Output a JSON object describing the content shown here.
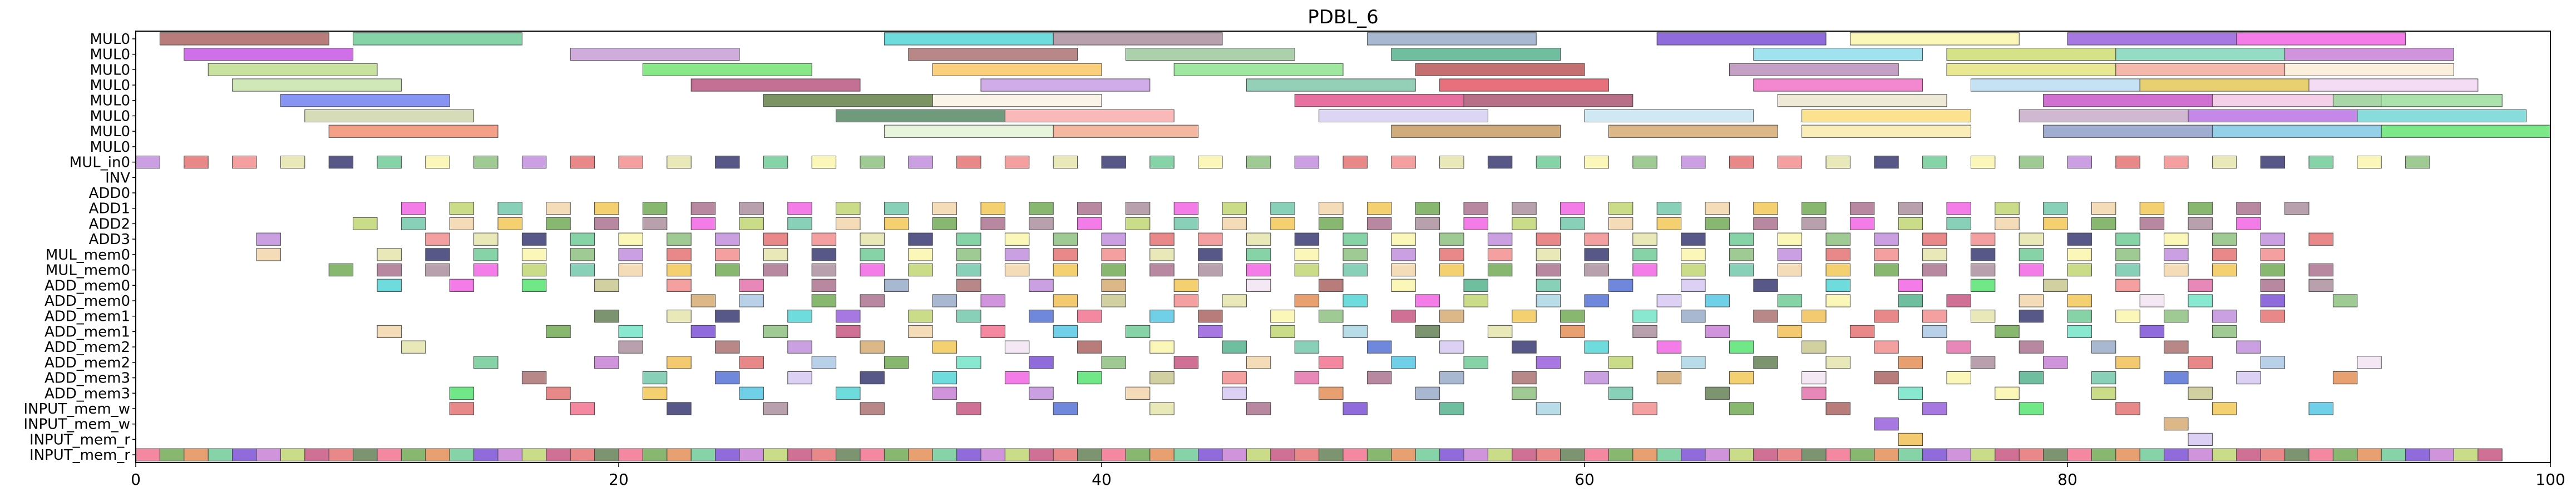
{
  "chart_data": {
    "type": "gantt",
    "title": "PDBL_6",
    "xlabel": "",
    "ylabel": "",
    "xlim": [
      0,
      100
    ],
    "x_ticks": [
      0,
      20,
      40,
      60,
      80,
      100
    ],
    "grid": false,
    "rows": [
      "MUL0",
      "MUL0",
      "MUL0",
      "MUL0",
      "MUL0",
      "MUL0",
      "MUL0",
      "MUL0",
      "MUL_in0",
      "INV",
      "ADD0",
      "ADD1",
      "ADD2",
      "ADD3",
      "MUL_mem0",
      "MUL_mem0",
      "ADD_mem0",
      "ADD_mem0",
      "ADD_mem1",
      "ADD_mem1",
      "ADD_mem2",
      "ADD_mem2",
      "ADD_mem3",
      "ADD_mem3",
      "INPUT_mem_w",
      "INPUT_mem_w",
      "INPUT_mem_r",
      "INPUT_mem_r"
    ],
    "palette": [
      "#a0524e",
      "#5ec48a",
      "#3ed0d0",
      "#a08090",
      "#8aa0c0",
      "#6a3ad0",
      "#f8f4a0",
      "#8a4ad8",
      "#f050e0",
      "#c070d0",
      "#a06060",
      "#80b870",
      "#40a880",
      "#b8d060",
      "#40e060",
      "#f0b840",
      "#b880d8",
      "#c04070",
      "#60c0a0",
      "#a0d0e0",
      "#c0c080",
      "#e06060",
      "#d0a060",
      "#f0d0a0",
      "#4060d0",
      "#507040",
      "#f08080",
      "#a0c0e0",
      "#f0c040",
      "#f06080",
      "#d0c0f0",
      "#e0e0a0",
      "#e060a0",
      "#60a040",
      "#f0e0f0",
      "#40c0e0",
      "#202060",
      "#e08040",
      "#a06080",
      "#60e0c0"
    ],
    "tasks": [
      {
        "row": 0,
        "start": 1.0,
        "end": 8.0,
        "color": "#a0524e"
      },
      {
        "row": 0,
        "start": 9.0,
        "end": 16.0,
        "color": "#5ec48a"
      },
      {
        "row": 0,
        "start": 31.0,
        "end": 38.0,
        "color": "#3ed0d0"
      },
      {
        "row": 0,
        "start": 38.0,
        "end": 45.0,
        "color": "#a08090"
      },
      {
        "row": 0,
        "start": 51.0,
        "end": 58.0,
        "color": "#8aa0c0"
      },
      {
        "row": 0,
        "start": 63.0,
        "end": 70.0,
        "color": "#6a3ad0"
      },
      {
        "row": 0,
        "start": 71.0,
        "end": 78.0,
        "color": "#f8f4a0"
      },
      {
        "row": 0,
        "start": 80.0,
        "end": 87.0,
        "color": "#8a4ad8"
      },
      {
        "row": 0,
        "start": 87.0,
        "end": 94.0,
        "color": "#f050e0"
      },
      {
        "row": 1,
        "start": 2.0,
        "end": 9.0,
        "color": "#c040e0"
      },
      {
        "row": 1,
        "start": 18.0,
        "end": 25.0,
        "color": "#c090d0"
      },
      {
        "row": 1,
        "start": 32.0,
        "end": 39.0,
        "color": "#a06060"
      },
      {
        "row": 1,
        "start": 41.0,
        "end": 48.0,
        "color": "#90c090"
      },
      {
        "row": 1,
        "start": 52.0,
        "end": 59.0,
        "color": "#40a880"
      },
      {
        "row": 1,
        "start": 67.0,
        "end": 74.0,
        "color": "#80d8e8"
      },
      {
        "row": 1,
        "start": 75.0,
        "end": 82.0,
        "color": "#c8d860"
      },
      {
        "row": 1,
        "start": 82.0,
        "end": 89.0,
        "color": "#70d0b0"
      },
      {
        "row": 1,
        "start": 89.0,
        "end": 96.0,
        "color": "#c070d0"
      },
      {
        "row": 2,
        "start": 3.0,
        "end": 10.0,
        "color": "#b8d880"
      },
      {
        "row": 2,
        "start": 21.0,
        "end": 28.0,
        "color": "#60e060"
      },
      {
        "row": 2,
        "start": 33.0,
        "end": 40.0,
        "color": "#f8c050"
      },
      {
        "row": 2,
        "start": 43.0,
        "end": 50.0,
        "color": "#80e080"
      },
      {
        "row": 2,
        "start": 53.0,
        "end": 60.0,
        "color": "#b04040"
      },
      {
        "row": 2,
        "start": 66.0,
        "end": 73.0,
        "color": "#b080b0"
      },
      {
        "row": 2,
        "start": 75.0,
        "end": 82.0,
        "color": "#e0e070"
      },
      {
        "row": 2,
        "start": 82.0,
        "end": 89.0,
        "color": "#f0a090"
      },
      {
        "row": 2,
        "start": 89.0,
        "end": 96.0,
        "color": "#f8e8d0"
      },
      {
        "row": 3,
        "start": 4.0,
        "end": 11.0,
        "color": "#c0e0a0"
      },
      {
        "row": 3,
        "start": 23.0,
        "end": 30.0,
        "color": "#b04070"
      },
      {
        "row": 3,
        "start": 35.0,
        "end": 42.0,
        "color": "#c090e0"
      },
      {
        "row": 3,
        "start": 46.0,
        "end": 53.0,
        "color": "#70c0a0"
      },
      {
        "row": 3,
        "start": 54.0,
        "end": 61.0,
        "color": "#e04050"
      },
      {
        "row": 3,
        "start": 67.0,
        "end": 74.0,
        "color": "#f060c0"
      },
      {
        "row": 3,
        "start": 76.0,
        "end": 83.0,
        "color": "#b0d8f0"
      },
      {
        "row": 3,
        "start": 83.0,
        "end": 90.0,
        "color": "#e0c040"
      },
      {
        "row": 3,
        "start": 90.0,
        "end": 97.0,
        "color": "#f0d0f0"
      },
      {
        "row": 4,
        "start": 6.0,
        "end": 13.0,
        "color": "#6070f0"
      },
      {
        "row": 4,
        "start": 26.0,
        "end": 33.0,
        "color": "#507030"
      },
      {
        "row": 4,
        "start": 33.0,
        "end": 40.0,
        "color": "#f8f0e0"
      },
      {
        "row": 4,
        "start": 48.0,
        "end": 55.0,
        "color": "#e04080"
      },
      {
        "row": 4,
        "start": 55.0,
        "end": 62.0,
        "color": "#a04060"
      },
      {
        "row": 4,
        "start": 68.0,
        "end": 75.0,
        "color": "#e8e0c8"
      },
      {
        "row": 4,
        "start": 79.0,
        "end": 86.0,
        "color": "#c040c0"
      },
      {
        "row": 4,
        "start": 86.0,
        "end": 93.0,
        "color": "#f0c0e0"
      },
      {
        "row": 4,
        "start": 91.0,
        "end": 98.0,
        "color": "#90d890"
      },
      {
        "row": 5,
        "start": 7.0,
        "end": 14.0,
        "color": "#c8d0a0"
      },
      {
        "row": 5,
        "start": 29.0,
        "end": 36.0,
        "color": "#407850"
      },
      {
        "row": 5,
        "start": 36.0,
        "end": 43.0,
        "color": "#f8a0a0"
      },
      {
        "row": 5,
        "start": 49.0,
        "end": 56.0,
        "color": "#d0c8f0"
      },
      {
        "row": 5,
        "start": 60.0,
        "end": 67.0,
        "color": "#c0e0f0"
      },
      {
        "row": 5,
        "start": 69.0,
        "end": 76.0,
        "color": "#f8d868"
      },
      {
        "row": 5,
        "start": 78.0,
        "end": 85.0,
        "color": "#c0a0c0"
      },
      {
        "row": 5,
        "start": 85.0,
        "end": 92.0,
        "color": "#b060e0"
      },
      {
        "row": 5,
        "start": 92.0,
        "end": 99.0,
        "color": "#60d0d0"
      },
      {
        "row": 6,
        "start": 8.0,
        "end": 15.0,
        "color": "#f08060"
      },
      {
        "row": 6,
        "start": 31.0,
        "end": 38.0,
        "color": "#e0f0d0"
      },
      {
        "row": 6,
        "start": 38.0,
        "end": 44.0,
        "color": "#f0a080"
      },
      {
        "row": 6,
        "start": 52.0,
        "end": 59.0,
        "color": "#c09050"
      },
      {
        "row": 6,
        "start": 61.0,
        "end": 68.0,
        "color": "#d0a060"
      },
      {
        "row": 6,
        "start": 69.0,
        "end": 76.0,
        "color": "#f8e8a0"
      },
      {
        "row": 6,
        "start": 79.0,
        "end": 86.0,
        "color": "#8090c0"
      },
      {
        "row": 6,
        "start": 86.0,
        "end": 93.0,
        "color": "#70c0e0"
      },
      {
        "row": 6,
        "start": 93.0,
        "end": 100.0,
        "color": "#50e060"
      }
    ],
    "dense_rows": [
      8,
      10,
      11,
      12,
      13,
      14,
      15,
      16,
      17,
      18,
      19,
      20,
      21,
      22,
      23,
      24,
      25,
      26,
      27
    ],
    "dense_cell_width": 1.0,
    "dense_cells": [
      [
        0,
        2,
        4,
        6,
        8,
        10,
        12,
        14,
        16,
        18,
        20,
        22,
        24,
        26,
        28,
        30,
        32,
        34,
        36,
        38,
        40,
        42,
        44,
        46,
        48,
        50,
        52,
        54,
        56,
        58,
        60,
        62,
        64,
        66,
        68,
        70,
        72,
        74,
        76,
        78,
        80,
        82,
        84,
        86,
        88,
        90,
        92,
        94
      ],
      [],
      [
        11,
        13,
        15,
        17,
        19,
        21,
        23,
        25,
        27,
        29,
        31,
        33,
        35,
        37,
        39,
        41,
        43,
        45,
        47,
        49,
        51,
        53,
        55,
        57,
        59,
        61,
        63,
        65,
        67,
        69,
        71,
        73,
        75,
        77,
        79,
        81,
        83,
        85,
        87,
        89
      ],
      [
        9,
        11,
        13,
        15,
        17,
        19,
        21,
        23,
        25,
        27,
        29,
        31,
        33,
        35,
        37,
        39,
        41,
        43,
        45,
        47,
        49,
        51,
        53,
        55,
        57,
        59,
        61,
        63,
        65,
        67,
        69,
        71,
        73,
        75,
        77,
        79,
        81,
        83,
        85,
        87
      ],
      [
        5,
        12,
        14,
        16,
        18,
        20,
        22,
        24,
        26,
        28,
        30,
        32,
        34,
        36,
        38,
        40,
        42,
        44,
        46,
        48,
        50,
        52,
        54,
        56,
        58,
        60,
        62,
        64,
        66,
        68,
        70,
        72,
        74,
        76,
        78,
        80,
        82,
        84,
        86,
        88,
        90
      ],
      [
        5,
        10,
        12,
        14,
        16,
        18,
        20,
        22,
        24,
        26,
        28,
        30,
        32,
        34,
        36,
        38,
        40,
        42,
        44,
        46,
        48,
        50,
        52,
        54,
        56,
        58,
        60,
        62,
        64,
        66,
        68,
        70,
        72,
        74,
        76,
        78,
        80,
        82,
        84,
        86,
        88
      ],
      [
        8,
        10,
        12,
        14,
        16,
        18,
        20,
        22,
        24,
        26,
        28,
        30,
        32,
        34,
        36,
        38,
        40,
        42,
        44,
        46,
        48,
        50,
        52,
        54,
        56,
        58,
        60,
        62,
        64,
        66,
        68,
        70,
        72,
        74,
        76,
        78,
        80,
        82,
        84,
        86,
        88,
        90
      ],
      [
        10,
        13,
        16,
        19,
        22,
        25,
        28,
        31,
        34,
        37,
        40,
        43,
        46,
        49,
        52,
        55,
        58,
        61,
        64,
        67,
        70,
        73,
        76,
        79,
        82,
        85,
        88,
        90
      ],
      [
        23,
        25,
        28,
        30,
        33,
        35,
        38,
        40,
        43,
        45,
        48,
        50,
        53,
        55,
        58,
        60,
        63,
        65,
        68,
        70,
        73,
        75,
        78,
        80,
        83,
        85,
        88,
        91
      ],
      [
        19,
        22,
        24,
        27,
        29,
        32,
        34,
        37,
        39,
        42,
        44,
        47,
        49,
        52,
        54,
        57,
        59,
        62,
        64,
        67,
        69,
        72,
        74,
        76,
        78,
        80,
        82,
        84,
        86,
        88
      ],
      [
        10,
        17,
        20,
        23,
        26,
        29,
        32,
        35,
        38,
        41,
        44,
        47,
        50,
        53,
        56,
        59,
        62,
        65,
        68,
        71,
        74,
        77,
        80,
        83,
        86
      ],
      [
        11,
        20,
        24,
        27,
        30,
        33,
        36,
        39,
        42,
        45,
        48,
        51,
        54,
        57,
        60,
        63,
        66,
        69,
        72,
        75,
        78,
        81,
        84,
        87
      ],
      [
        14,
        19,
        22,
        25,
        28,
        31,
        34,
        37,
        40,
        43,
        46,
        49,
        52,
        55,
        58,
        61,
        64,
        67,
        70,
        73,
        76,
        79,
        82,
        85,
        88,
        92
      ],
      [
        16,
        21,
        24,
        27,
        30,
        33,
        36,
        39,
        42,
        45,
        48,
        51,
        54,
        57,
        60,
        63,
        66,
        69,
        72,
        75,
        78,
        81,
        84,
        87,
        91
      ],
      [
        13,
        17,
        21,
        25,
        29,
        33,
        37,
        41,
        45,
        49,
        53,
        57,
        61,
        65,
        69,
        73,
        77,
        81,
        85
      ],
      [
        13,
        18,
        22,
        26,
        30,
        34,
        38,
        42,
        46,
        50,
        54,
        58,
        62,
        66,
        70,
        74,
        78,
        82,
        86,
        90
      ],
      [
        72,
        84
      ],
      [
        73,
        85
      ],
      [
        0,
        1,
        2,
        3,
        4,
        5,
        6,
        7,
        8,
        9,
        10,
        11,
        12,
        13,
        14,
        15,
        16,
        17,
        18,
        19,
        20,
        21,
        22,
        23,
        24,
        25,
        26,
        27,
        28,
        29,
        30,
        31,
        32,
        33,
        34,
        35,
        36,
        37,
        38,
        39,
        40,
        41,
        42,
        43,
        44,
        45,
        46,
        47,
        48,
        49,
        50,
        51,
        52,
        53,
        54,
        55,
        56,
        57,
        58,
        59,
        60,
        61,
        62,
        63,
        64,
        65,
        66,
        67,
        68,
        69,
        70,
        71,
        72,
        73,
        74,
        75,
        76,
        77,
        78,
        79,
        80,
        81,
        82,
        83,
        84,
        85,
        86,
        87,
        88,
        89,
        90,
        91,
        92,
        93,
        94,
        95,
        96,
        97
      ],
      [
        0,
        1,
        2,
        3,
        4,
        5,
        6,
        7,
        8,
        9,
        10,
        11,
        12,
        13,
        14,
        15,
        16,
        17,
        18,
        19,
        20,
        21,
        22,
        23,
        24,
        25,
        26,
        27,
        28,
        29,
        30,
        31,
        32,
        33,
        34,
        35,
        36,
        37,
        38,
        39,
        40,
        41,
        42,
        43,
        44,
        45,
        46,
        47,
        48,
        49,
        50,
        51,
        52,
        53,
        54,
        55,
        56,
        57,
        58,
        59,
        60,
        61,
        62,
        63,
        64,
        65,
        66,
        67,
        68,
        69,
        70,
        71,
        72,
        73,
        74,
        75,
        76,
        77,
        78,
        79,
        80,
        81,
        82,
        83,
        84,
        85,
        86,
        87,
        88,
        89,
        90,
        91,
        92,
        93,
        94,
        95,
        96,
        97
      ]
    ],
    "sparse_tail_rows": {
      "26": [
        66,
        75,
        80,
        83,
        88
      ],
      "27": [
        44,
        48,
        52,
        56,
        60,
        64,
        68,
        72,
        76,
        80
      ]
    }
  }
}
